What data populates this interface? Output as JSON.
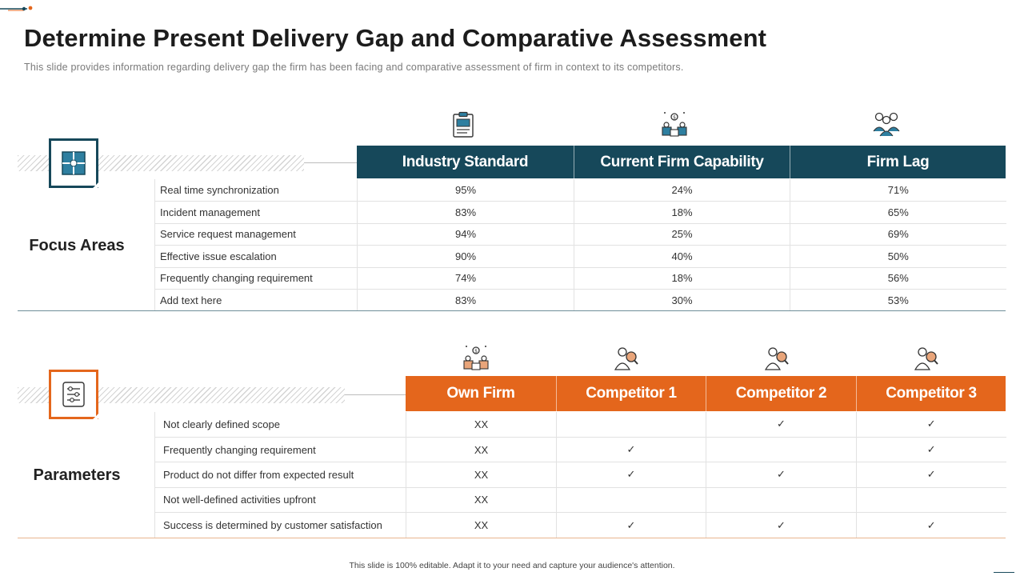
{
  "title": "Determine Present Delivery Gap and Comparative Assessment",
  "subtitle": "This slide provides information regarding delivery gap the firm has been facing and comparative assessment of firm in context to its competitors.",
  "colors": {
    "teal": "#16485a",
    "orange": "#e4661c",
    "teal_rule": "#6f8f99",
    "orange_rule": "#e9b48f"
  },
  "focus": {
    "section_label": "Focus Areas",
    "section_icon": "window-grid-icon",
    "headers": [
      {
        "label": "Industry Standard",
        "icon": "clipboard-icon"
      },
      {
        "label": "Current Firm Capability",
        "icon": "business-team-icon"
      },
      {
        "label": "Firm Lag",
        "icon": "people-group-icon"
      }
    ],
    "rows": [
      {
        "label": "Real time synchronization",
        "values": [
          "95%",
          "24%",
          "71%"
        ]
      },
      {
        "label": "Incident management",
        "values": [
          "83%",
          "18%",
          "65%"
        ]
      },
      {
        "label": "Service request management",
        "values": [
          "94%",
          "25%",
          "69%"
        ]
      },
      {
        "label": "Effective issue escalation",
        "values": [
          "90%",
          "40%",
          "50%"
        ]
      },
      {
        "label": "Frequently changing requirement",
        "values": [
          "74%",
          "18%",
          "56%"
        ]
      },
      {
        "label": "Add text here",
        "values": [
          "83%",
          "30%",
          "53%"
        ]
      }
    ]
  },
  "params": {
    "section_label": "Parameters",
    "section_icon": "sliders-icon",
    "headers": [
      {
        "label": "Own Firm",
        "icon": "business-team-icon"
      },
      {
        "label": "Competitor 1",
        "icon": "businessman-search-icon"
      },
      {
        "label": "Competitor 2",
        "icon": "businessman-search-icon"
      },
      {
        "label": "Competitor 3",
        "icon": "businessman-search-icon"
      }
    ],
    "rows": [
      {
        "label": "Not clearly defined  scope",
        "values": [
          "XX",
          "",
          "✓",
          "✓"
        ]
      },
      {
        "label": "Frequently changing requirement",
        "values": [
          "XX",
          "✓",
          "",
          "✓"
        ]
      },
      {
        "label": "Product do not differ from expected result",
        "values": [
          "XX",
          "✓",
          "✓",
          "✓"
        ]
      },
      {
        "label": "Not well-defined  activities upfront",
        "values": [
          "XX",
          "",
          "",
          ""
        ]
      },
      {
        "label": "Success is determined  by customer satisfaction",
        "values": [
          "XX",
          "✓",
          "✓",
          "✓"
        ]
      }
    ]
  },
  "footer": "This slide is 100% editable.  Adapt it to your need and capture your audience's attention."
}
